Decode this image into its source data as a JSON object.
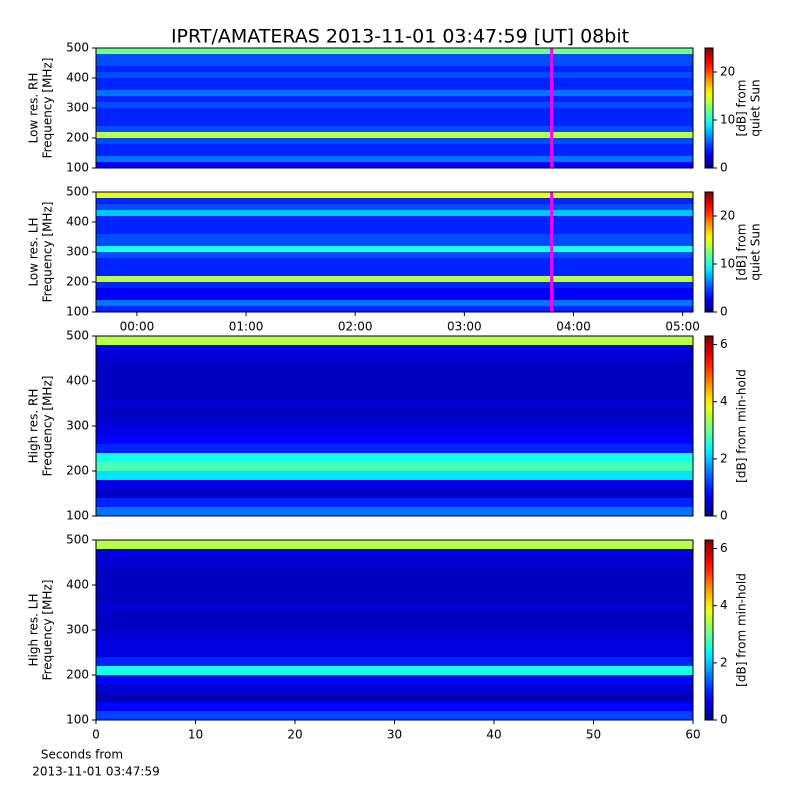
{
  "title": "IPRT/AMATERAS 2013-11-01 03:47:59 [UT]   08bit",
  "xlabel": [
    "Seconds from",
    "2013-11-01 03:47:59"
  ],
  "chart_data": [
    {
      "type": "heatmap",
      "ylabel": [
        "Low res. RH",
        "Frequency [MHz]"
      ],
      "clabel": [
        "[dB] from",
        "quiet Sun"
      ],
      "colormap": "jet",
      "xlim": [
        -0.375,
        5.095
      ],
      "ylim": [
        100,
        500
      ],
      "yticks": [
        100,
        200,
        300,
        400,
        500
      ],
      "clim": [
        0,
        25
      ],
      "cticks": [
        0,
        10,
        20
      ],
      "ybins": [
        100,
        120,
        140,
        160,
        180,
        200,
        220,
        240,
        260,
        280,
        300,
        320,
        340,
        360,
        380,
        400,
        420,
        440,
        460,
        480,
        500
      ],
      "values": [
        3,
        6,
        4,
        4,
        5,
        14,
        5,
        4,
        4,
        4,
        5,
        4,
        6,
        4,
        4,
        5,
        4,
        5,
        5,
        12
      ],
      "marker": {
        "x": 3.8,
        "color": "#ff00ff"
      }
    },
    {
      "type": "heatmap",
      "ylabel": [
        "Low res. LH",
        "Frequency [MHz]"
      ],
      "clabel": [
        "[dB] from",
        "quiet Sun"
      ],
      "colormap": "jet",
      "xlim": [
        -0.375,
        5.095
      ],
      "ylim": [
        100,
        500
      ],
      "yticks": [
        100,
        200,
        300,
        400,
        500
      ],
      "xticks": [
        {
          "value": 0,
          "label": "00:00"
        },
        {
          "value": 1,
          "label": "01:00"
        },
        {
          "value": 2,
          "label": "02:00"
        },
        {
          "value": 3,
          "label": "03:00"
        },
        {
          "value": 4,
          "label": "04:00"
        },
        {
          "value": 5,
          "label": "05:00"
        }
      ],
      "clim": [
        0,
        25
      ],
      "cticks": [
        0,
        10,
        20
      ],
      "ybins": [
        100,
        120,
        140,
        160,
        180,
        200,
        220,
        240,
        260,
        280,
        300,
        320,
        340,
        360,
        380,
        400,
        420,
        440,
        460,
        480,
        500
      ],
      "values": [
        4,
        6,
        3,
        3,
        4,
        14,
        4,
        4,
        4,
        5,
        10,
        5,
        5,
        4,
        4,
        4,
        8,
        5,
        4,
        15
      ],
      "marker": {
        "x": 3.8,
        "color": "#ff00ff"
      }
    },
    {
      "type": "heatmap",
      "ylabel": [
        "High res. RH",
        "Frequency [MHz]"
      ],
      "clabel": [
        "[dB] from min-hold"
      ],
      "colormap": "jet",
      "xlim": [
        0,
        60
      ],
      "ylim": [
        100,
        500
      ],
      "yticks": [
        100,
        200,
        300,
        400,
        500
      ],
      "clim": [
        0,
        6.3
      ],
      "cticks": [
        0,
        2,
        4,
        6
      ],
      "ybins": [
        100,
        120,
        140,
        160,
        180,
        200,
        220,
        240,
        260,
        280,
        300,
        320,
        340,
        360,
        380,
        400,
        420,
        440,
        460,
        480,
        500
      ],
      "values": [
        1.5,
        1,
        0.4,
        0.6,
        2.2,
        2.8,
        2.5,
        1,
        0.8,
        0.6,
        0.5,
        0.4,
        0.5,
        0.4,
        0.4,
        0.4,
        0.4,
        0.5,
        0.6,
        3.5
      ]
    },
    {
      "type": "heatmap",
      "ylabel": [
        "High res. LH",
        "Frequency [MHz]"
      ],
      "clabel": [
        "[dB] from min-hold"
      ],
      "colormap": "jet",
      "xlim": [
        0,
        60
      ],
      "ylim": [
        100,
        500
      ],
      "yticks": [
        100,
        200,
        300,
        400,
        500
      ],
      "xticks": [
        0,
        10,
        20,
        30,
        40,
        50,
        60
      ],
      "clim": [
        0,
        6.3
      ],
      "cticks": [
        0,
        2,
        4,
        6
      ],
      "ybins": [
        100,
        120,
        140,
        160,
        180,
        200,
        220,
        240,
        260,
        280,
        300,
        320,
        340,
        360,
        380,
        400,
        420,
        440,
        460,
        480,
        500
      ],
      "values": [
        1.2,
        0.8,
        0.3,
        0.5,
        0.8,
        2.5,
        1,
        0.6,
        0.6,
        0.5,
        0.4,
        0.4,
        0.5,
        0.4,
        0.4,
        0.4,
        0.4,
        0.5,
        0.6,
        3.5
      ]
    }
  ]
}
